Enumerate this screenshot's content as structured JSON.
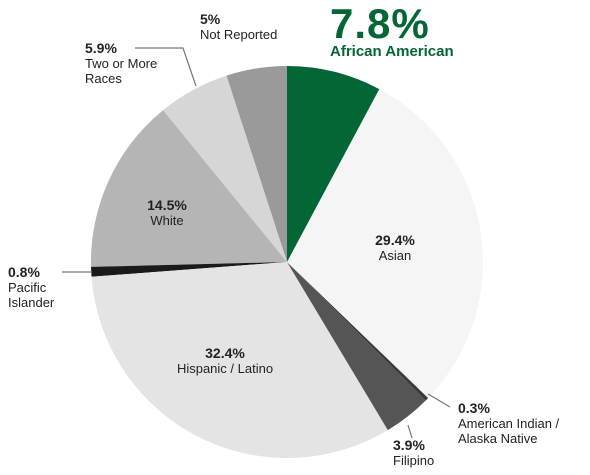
{
  "chart_data": {
    "type": "pie",
    "categories": [
      "African American",
      "Asian",
      "American Indian / Alaska Native",
      "Filipino",
      "Hispanic / Latino",
      "Pacific Islander",
      "White",
      "Two or More Races",
      "Not Reported"
    ],
    "values": [
      7.8,
      29.4,
      0.3,
      3.9,
      32.4,
      0.8,
      14.5,
      5.9,
      5
    ],
    "value_labels": [
      "7.8%",
      "29.4%",
      "0.3%",
      "3.9%",
      "32.4%",
      "0.8%",
      "14.5%",
      "5.9%",
      "5%"
    ],
    "colors": [
      "#036635",
      "#f5f5f5",
      "#3a3a3a",
      "#555555",
      "#e4e4e4",
      "#1a1a1a",
      "#b5b5b5",
      "#d6d6d6",
      "#9a9a9b"
    ]
  }
}
